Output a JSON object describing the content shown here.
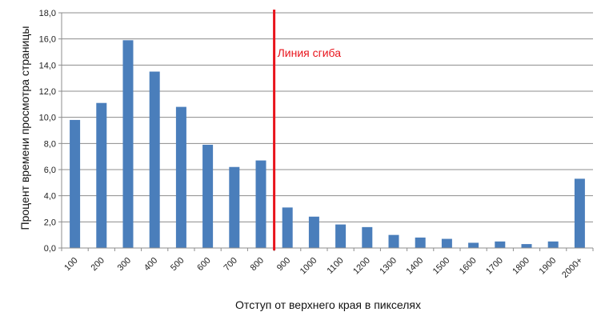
{
  "chart_data": {
    "type": "bar",
    "title": "",
    "xlabel": "Отступ от верхнего края в пикселях",
    "ylabel": "Процент времени просмотра страницы",
    "ylim": [
      0,
      18
    ],
    "y_ticks": [
      "0,0",
      "2,0",
      "4,0",
      "6,0",
      "8,0",
      "10,0",
      "12,0",
      "14,0",
      "16,0",
      "18,0"
    ],
    "grid": true,
    "legend": "none",
    "bar_color": "#4a7ebb",
    "categories": [
      "100",
      "200",
      "300",
      "400",
      "500",
      "600",
      "700",
      "800",
      "900",
      "1000",
      "1100",
      "1200",
      "1300",
      "1400",
      "1500",
      "1600",
      "1700",
      "1800",
      "1900",
      "2000+"
    ],
    "values": [
      9.8,
      11.1,
      15.9,
      13.5,
      10.8,
      7.9,
      6.2,
      6.7,
      3.1,
      2.4,
      1.8,
      1.6,
      1.0,
      0.8,
      0.7,
      0.4,
      0.5,
      0.3,
      0.5,
      5.3
    ],
    "annotation": {
      "label": "Линия сгиба",
      "color": "#e8141c",
      "after_category": "800"
    }
  }
}
